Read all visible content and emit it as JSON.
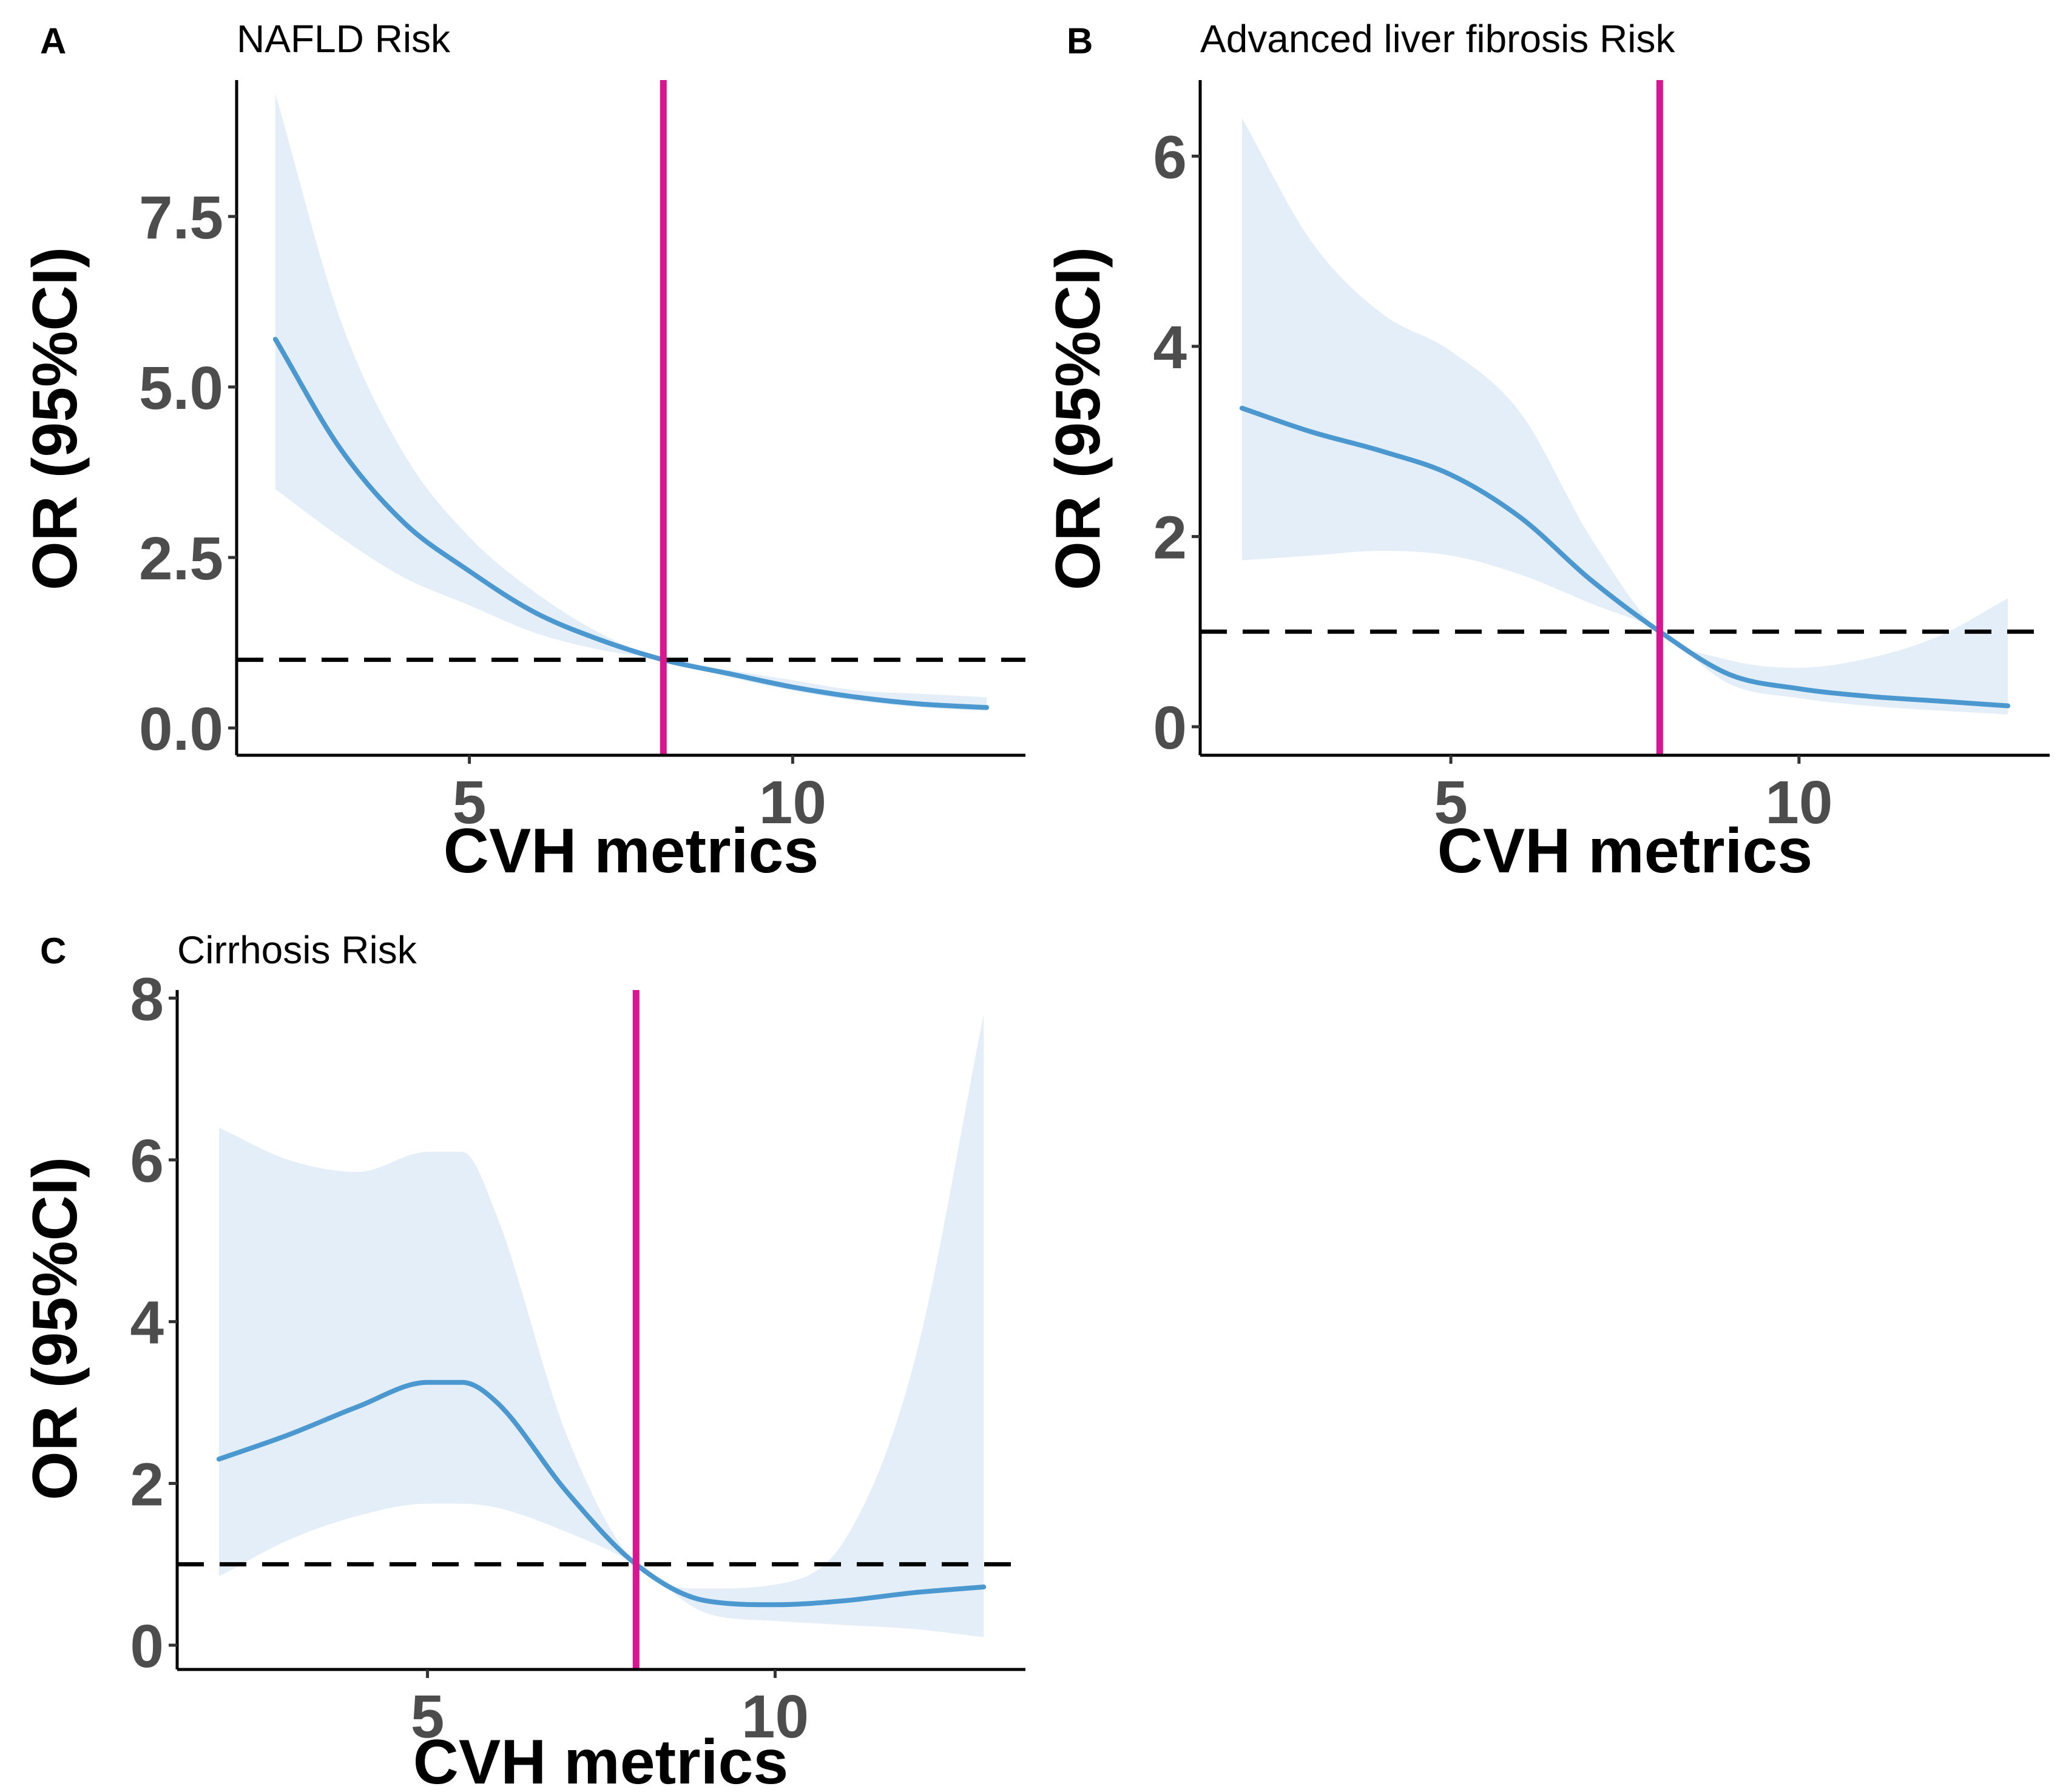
{
  "chart_data": [
    {
      "type": "line",
      "panel_label": "A",
      "title": "NAFLD Risk",
      "xlabel": "CVH metrics",
      "ylabel": "OR (95%CI)",
      "xlim": [
        1.4,
        13.6
      ],
      "ylim": [
        -0.4,
        9.5
      ],
      "xticks": [
        5,
        10
      ],
      "xtick_labels": [
        "5",
        "10"
      ],
      "yticks": [
        0,
        2.5,
        5,
        7.5
      ],
      "ytick_labels": [
        "0.0",
        "2.5",
        "5.0",
        "7.5"
      ],
      "reference_line_y": 1,
      "cutoff_x": 8,
      "series": [
        {
          "name": "OR",
          "x": [
            2,
            3,
            4,
            5,
            6,
            7,
            8,
            9,
            10,
            11,
            12,
            13
          ],
          "y": [
            5.7,
            4.1,
            3.0,
            2.3,
            1.7,
            1.3,
            1.0,
            0.8,
            0.6,
            0.45,
            0.35,
            0.3
          ],
          "lower": [
            3.5,
            2.8,
            2.2,
            1.8,
            1.4,
            1.15,
            1.0,
            0.75,
            0.55,
            0.4,
            0.3,
            0.25
          ],
          "upper": [
            9.3,
            6.0,
            4.0,
            2.8,
            2.0,
            1.4,
            1.0,
            0.85,
            0.7,
            0.55,
            0.5,
            0.45
          ]
        }
      ]
    },
    {
      "type": "line",
      "panel_label": "B",
      "title": "Advanced liver fibrosis Risk",
      "xlabel": "CVH metrics",
      "ylabel": "OR (95%CI)",
      "xlim": [
        1.4,
        13.6
      ],
      "ylim": [
        -0.3,
        6.8
      ],
      "xticks": [
        5,
        10
      ],
      "xtick_labels": [
        "5",
        "10"
      ],
      "yticks": [
        0,
        2,
        4,
        6
      ],
      "ytick_labels": [
        "0",
        "2",
        "4",
        "6"
      ],
      "reference_line_y": 1,
      "cutoff_x": 8,
      "series": [
        {
          "name": "OR",
          "x": [
            2,
            3,
            4,
            5,
            6,
            7,
            8,
            9,
            10,
            11,
            12,
            13
          ],
          "y": [
            3.35,
            3.1,
            2.9,
            2.65,
            2.2,
            1.55,
            1.0,
            0.55,
            0.4,
            0.32,
            0.27,
            0.22
          ],
          "lower": [
            1.75,
            1.8,
            1.85,
            1.8,
            1.6,
            1.3,
            1.0,
            0.45,
            0.3,
            0.22,
            0.17,
            0.13
          ],
          "upper": [
            6.4,
            5.1,
            4.35,
            3.95,
            3.3,
            2.0,
            1.0,
            0.7,
            0.62,
            0.72,
            0.95,
            1.35
          ]
        }
      ]
    },
    {
      "type": "line",
      "panel_label": "C",
      "title": "Cirrhosis Risk",
      "xlabel": "CVH metrics",
      "ylabel": "OR (95%CI)",
      "xlim": [
        1.4,
        13.6
      ],
      "ylim": [
        -0.3,
        8.1
      ],
      "xticks": [
        5,
        10
      ],
      "xtick_labels": [
        "5",
        "10"
      ],
      "yticks": [
        0,
        2,
        4,
        6,
        8
      ],
      "ytick_labels": [
        "0",
        "2",
        "4",
        "6",
        "8"
      ],
      "reference_line_y": 1,
      "cutoff_x": 8,
      "series": [
        {
          "name": "OR",
          "x": [
            2,
            3,
            4,
            5,
            5.5,
            6,
            7,
            8,
            9,
            10,
            11,
            12,
            13
          ],
          "y": [
            2.3,
            2.6,
            2.95,
            3.25,
            3.25,
            3.0,
            1.9,
            1.0,
            0.55,
            0.5,
            0.55,
            0.65,
            0.72
          ],
          "lower": [
            0.85,
            1.3,
            1.6,
            1.75,
            1.75,
            1.7,
            1.4,
            1.0,
            0.4,
            0.3,
            0.25,
            0.2,
            0.1
          ],
          "upper": [
            6.4,
            6.0,
            5.85,
            6.1,
            6.1,
            5.3,
            2.6,
            1.0,
            0.7,
            0.75,
            1.3,
            3.5,
            7.8
          ]
        }
      ]
    }
  ]
}
